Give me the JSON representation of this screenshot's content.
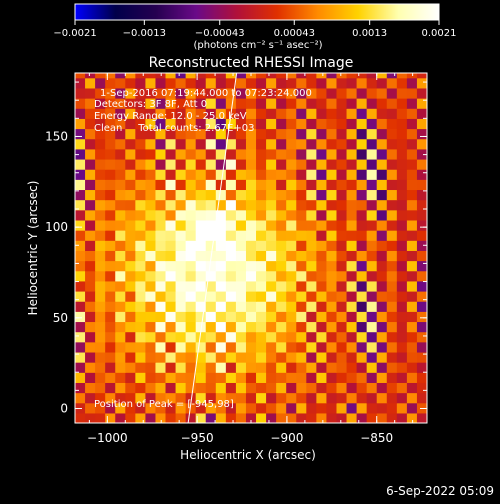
{
  "chart_data": {
    "type": "heatmap",
    "title": "Reconstructed RHESSI Image",
    "xlabel": "Heliocentric X (arcsec)",
    "ylabel": "Heliocentric Y (arcsec)",
    "xlim": [
      -1018,
      -822
    ],
    "ylim": [
      -8,
      185
    ],
    "x_ticks": [
      -1000,
      -950,
      -900,
      -850
    ],
    "x_tick_labels": [
      "−1000",
      "−950",
      "−900",
      "−850"
    ],
    "y_ticks": [
      0,
      50,
      100,
      150
    ],
    "y_tick_labels": [
      "0",
      "50",
      "100",
      "150"
    ],
    "colorbar": {
      "range": [
        -0.0021,
        0.0021
      ],
      "ticks": [
        -0.0021,
        -0.0013,
        -0.00043,
        0.00043,
        0.0013,
        0.0021
      ],
      "tick_labels": [
        "−0.0021",
        "−0.0013",
        "−0.00043",
        "0.00043",
        "0.0013",
        "0.0021"
      ],
      "unit_text": "(photons cm⁻² s⁻¹ asec⁻²)",
      "colormap": [
        "#0000ff",
        "#00004a",
        "#250050",
        "#6a0a88",
        "#b0103a",
        "#e03000",
        "#ff8a00",
        "#ffd200",
        "#ffffb0",
        "#ffffff"
      ]
    },
    "annotations": [
      "1-Sep-2016 07:19:44.000 to 07:23:24.000",
      "Detectors: 3F 8F, Att 0",
      "Energy Range: 12.0 - 25.0 keV",
      "Clean     Total counts: 2.67E+03"
    ],
    "peak_text": "Position of Peak = [-945,98]",
    "source": {
      "center": [
        -945,
        72
      ],
      "peak": [
        -945,
        98
      ],
      "peak_value": 0.0021,
      "sigma_arcsec": 38,
      "ripple_period_arcsec": 12
    },
    "limb_line": {
      "from": [
        -955,
        -8
      ],
      "to": [
        -928,
        185
      ]
    },
    "grid": false
  },
  "footer": {
    "timestamp": "6-Sep-2022 05:09"
  }
}
